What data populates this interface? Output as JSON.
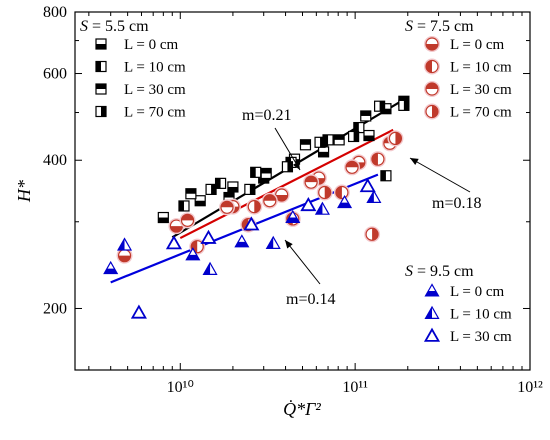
{
  "chart_data": {
    "type": "scatter",
    "x_scale": "log",
    "y_scale": "log",
    "xlim": [
      2500000000.0,
      1000000000000.0
    ],
    "ylim": [
      150,
      800
    ],
    "xlabel": "Q̇*Γ²",
    "ylabel": "H*",
    "x_ticks": [
      {
        "value": 10000000000.0,
        "label": "10¹⁰"
      },
      {
        "value": 100000000000.0,
        "label": "10¹¹"
      },
      {
        "value": 1000000000000.0,
        "label": "10¹²"
      }
    ],
    "y_ticks": [
      {
        "value": 200,
        "label": "200"
      },
      {
        "value": 400,
        "label": "400"
      },
      {
        "value": 600,
        "label": "600"
      },
      {
        "value": 800,
        "label": "800"
      }
    ],
    "groups": [
      {
        "heading": "S = 5.5 cm",
        "legend_position": "top-left",
        "color": "#000000",
        "series": [
          {
            "name": "L = 0 cm",
            "marker": "square-bottom-half",
            "points": [
              [
                8000000000.0,
                306
              ],
              [
                13000000000.0,
                331
              ],
              [
                20000000000.0,
                353
              ],
              [
                30000000000.0,
                368
              ],
              [
                45000000000.0,
                402
              ],
              [
                66000000000.0,
                416
              ],
              [
                120000000000.0,
                449
              ],
              [
                150000000000.0,
                509
              ]
            ]
          },
          {
            "name": "L = 10 cm",
            "marker": "square-left-half",
            "points": [
              [
                10500000000.0,
                323
              ],
              [
                17000000000.0,
                359
              ],
              [
                27000000000.0,
                378
              ],
              [
                43000000000.0,
                396
              ],
              [
                70000000000.0,
                440
              ],
              [
                105000000000.0,
                466
              ],
              [
                150000000000.0,
                372
              ]
            ]
          },
          {
            "name": "L = 30 cm",
            "marker": "square-top-half",
            "points": [
              [
                11500000000.0,
                342
              ],
              [
                19000000000.0,
                336
              ],
              [
                31000000000.0,
                376
              ],
              [
                52000000000.0,
                430
              ],
              [
                81000000000.0,
                440
              ],
              [
                115000000000.0,
                492
              ],
              [
                190000000000.0,
                527
              ]
            ]
          },
          {
            "name": "L = 70 cm",
            "marker": "square-right-half",
            "points": [
              [
                15000000000.0,
                349
              ],
              [
                25000000000.0,
                349
              ],
              [
                41000000000.0,
                388
              ],
              [
                63000000000.0,
                435
              ],
              [
                98000000000.0,
                447
              ],
              [
                138000000000.0,
                515
              ],
              [
                190000000000.0,
                517
              ]
            ]
          }
        ]
      },
      {
        "heading": "S = 7.5 cm",
        "legend_position": "top-right",
        "color": "#c0392b",
        "series": [
          {
            "name": "L = 0 cm",
            "marker": "circle-bottom-half",
            "points": [
              [
                4800000000.0,
                256
              ],
              [
                9500000000.0,
                294
              ],
              [
                20000000000.0,
                322
              ],
              [
                38000000000.0,
                340
              ],
              [
                62000000000.0,
                368
              ],
              [
                105000000000.0,
                396
              ]
            ]
          },
          {
            "name": "L = 10 cm",
            "marker": "circle-left-half",
            "points": [
              [
                12500000000.0,
                267
              ],
              [
                24500000000.0,
                296
              ],
              [
                44000000000.0,
                304
              ],
              [
                84000000000.0,
                344
              ],
              [
                135000000000.0,
                402
              ]
            ]
          },
          {
            "name": "L = 30 cm",
            "marker": "circle-top-half",
            "points": [
              [
                11000000000.0,
                302
              ],
              [
                18500000000.0,
                321
              ],
              [
                32500000000.0,
                331
              ],
              [
                56000000000.0,
                361
              ],
              [
                96000000000.0,
                387
              ],
              [
                158000000000.0,
                433
              ]
            ]
          },
          {
            "name": "L = 70 cm",
            "marker": "circle-right-half",
            "points": [
              [
                26500000000.0,
                322
              ],
              [
                67000000000.0,
                344
              ],
              [
                125000000000.0,
                283
              ],
              [
                170000000000.0,
                443
              ]
            ]
          }
        ]
      },
      {
        "heading": "S = 9.5 cm",
        "legend_position": "bottom-right",
        "color": "#0000cc",
        "series": [
          {
            "name": "L = 0 cm",
            "marker": "triangle-bottom-half",
            "points": [
              [
                4000000000.0,
                241
              ],
              [
                11800000000.0,
                257
              ],
              [
                22500000000.0,
                273
              ],
              [
                44000000000.0,
                306
              ],
              [
                87000000000.0,
                328
              ]
            ]
          },
          {
            "name": "L = 10 cm",
            "marker": "triangle-left-half",
            "points": [
              [
                4800000000.0,
                269
              ],
              [
                14800000000.0,
                240
              ],
              [
                34000000000.0,
                271
              ],
              [
                65000000000.0,
                318
              ],
              [
                128000000000.0,
                336
              ]
            ]
          },
          {
            "name": "L = 30 cm",
            "marker": "triangle-full",
            "points": [
              [
                5800000000.0,
                196
              ],
              [
                9200000000.0,
                271
              ],
              [
                14500000000.0,
                278
              ],
              [
                25500000000.0,
                296
              ],
              [
                54000000000.0,
                324
              ],
              [
                118000000000.0,
                354
              ]
            ]
          }
        ]
      }
    ],
    "fit_lines": [
      {
        "label": "m=0.21",
        "color": "#000000",
        "x": [
          9000000000.0,
          195000000000.0
        ],
        "y": [
          279,
          534
        ]
      },
      {
        "label": "m=0.18",
        "color": "#d40000",
        "x": [
          10000000000.0,
          165000000000.0
        ],
        "y": [
          278,
          461
        ]
      },
      {
        "label": "m=0.14",
        "color": "#0000dd",
        "x": [
          4000000000.0,
          135000000000.0
        ],
        "y": [
          226,
          374
        ]
      }
    ],
    "grid": false
  }
}
